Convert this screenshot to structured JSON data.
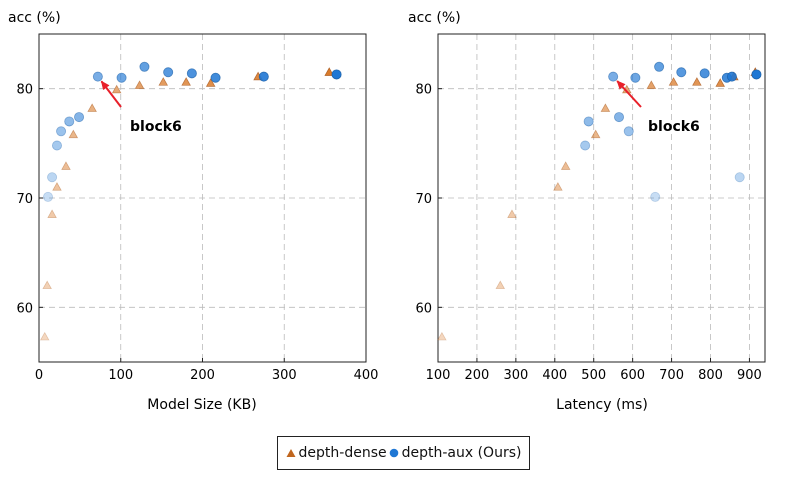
{
  "charts": [
    {
      "ylabel": "acc (%)",
      "xlabel": "Model Size (KB)",
      "xticks": [
        "0",
        "100",
        "200",
        "300",
        "400"
      ],
      "yticks": [
        "60",
        "70",
        "80"
      ],
      "annotation": "block6"
    },
    {
      "ylabel": "acc (%)",
      "xlabel": "Latency (ms)",
      "xticks": [
        "100",
        "200",
        "300",
        "400",
        "500",
        "600",
        "700",
        "800",
        "900"
      ],
      "yticks": [
        "60",
        "70",
        "80"
      ],
      "annotation": "block6"
    }
  ],
  "legend": {
    "dense_label": "depth-dense",
    "aux_label": "depth-aux (Ours)"
  },
  "colors": {
    "dense": "#d97b2b",
    "aux": "#1f77d4",
    "arrow": "#e8202a",
    "grid": "#bbbbbb"
  },
  "chart_data": [
    {
      "type": "scatter",
      "xlabel": "Model Size (KB)",
      "ylabel": "acc (%)",
      "xlim": [
        0,
        400
      ],
      "ylim": [
        55,
        85
      ],
      "grid": true,
      "legend": "bottom-center",
      "series": [
        {
          "name": "depth-dense",
          "marker": "triangle",
          "points": [
            [
              7,
              57.3,
              0.3
            ],
            [
              10,
              62.0,
              0.35
            ],
            [
              16,
              68.5,
              0.4
            ],
            [
              22,
              71.0,
              0.45
            ],
            [
              33,
              72.9,
              0.5
            ],
            [
              42,
              75.8,
              0.55
            ],
            [
              65,
              78.2,
              0.6
            ],
            [
              95,
              79.9,
              0.65
            ],
            [
              123,
              80.3,
              0.7
            ],
            [
              152,
              80.6,
              0.75
            ],
            [
              180,
              80.6,
              0.8
            ],
            [
              210,
              80.5,
              0.85
            ],
            [
              268,
              81.1,
              0.9
            ],
            [
              355,
              81.5,
              1.0
            ]
          ]
        },
        {
          "name": "depth-aux (Ours)",
          "marker": "circle",
          "points": [
            [
              11,
              70.1,
              0.25
            ],
            [
              16,
              71.9,
              0.3
            ],
            [
              22,
              74.8,
              0.4
            ],
            [
              27,
              76.1,
              0.45
            ],
            [
              37,
              77.0,
              0.5
            ],
            [
              49,
              77.4,
              0.55
            ],
            [
              72,
              81.1,
              0.6
            ],
            [
              101,
              81.0,
              0.65
            ],
            [
              129,
              82.0,
              0.7
            ],
            [
              158,
              81.5,
              0.75
            ],
            [
              187,
              81.4,
              0.8
            ],
            [
              216,
              81.0,
              0.85
            ],
            [
              275,
              81.1,
              0.9
            ],
            [
              364,
              81.3,
              1.0
            ]
          ]
        }
      ],
      "annotation": {
        "text": "block6",
        "target": [
          72,
          81.1
        ]
      }
    },
    {
      "type": "scatter",
      "xlabel": "Latency (ms)",
      "ylabel": "acc (%)",
      "xlim": [
        100,
        940
      ],
      "ylim": [
        55,
        85
      ],
      "grid": true,
      "legend": "bottom-center",
      "series": [
        {
          "name": "depth-dense",
          "marker": "triangle",
          "points": [
            [
              110,
              57.3,
              0.3
            ],
            [
              260,
              62.0,
              0.35
            ],
            [
              290,
              68.5,
              0.4
            ],
            [
              408,
              71.0,
              0.45
            ],
            [
              428,
              72.9,
              0.5
            ],
            [
              505,
              75.8,
              0.55
            ],
            [
              530,
              78.2,
              0.6
            ],
            [
              585,
              79.9,
              0.65
            ],
            [
              648,
              80.3,
              0.7
            ],
            [
              705,
              80.6,
              0.75
            ],
            [
              765,
              80.6,
              0.8
            ],
            [
              825,
              80.5,
              0.85
            ],
            [
              860,
              81.1,
              0.9
            ],
            [
              915,
              81.5,
              1.0
            ]
          ]
        },
        {
          "name": "depth-aux (Ours)",
          "marker": "circle",
          "points": [
            [
              658,
              70.1,
              0.25
            ],
            [
              875,
              71.9,
              0.3
            ],
            [
              478,
              74.8,
              0.4
            ],
            [
              590,
              76.1,
              0.45
            ],
            [
              487,
              77.0,
              0.5
            ],
            [
              565,
              77.4,
              0.55
            ],
            [
              550,
              81.1,
              0.6
            ],
            [
              607,
              81.0,
              0.65
            ],
            [
              668,
              82.0,
              0.7
            ],
            [
              725,
              81.5,
              0.75
            ],
            [
              785,
              81.4,
              0.8
            ],
            [
              842,
              81.0,
              0.85
            ],
            [
              855,
              81.1,
              0.9
            ],
            [
              918,
              81.3,
              1.0
            ]
          ]
        }
      ],
      "annotation": {
        "text": "block6",
        "target": [
          550,
          81.1
        ]
      }
    }
  ]
}
